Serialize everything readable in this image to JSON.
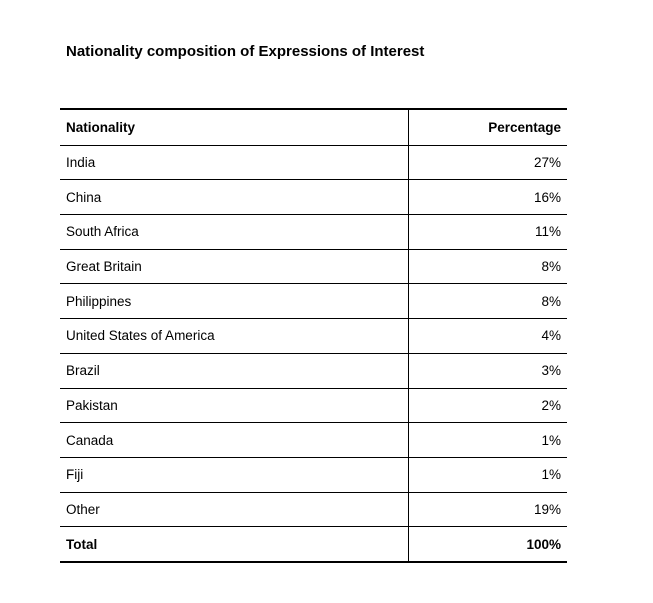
{
  "title": "Nationality composition of Expressions of Interest",
  "table": {
    "header": [
      "Nationality",
      "Percentage"
    ],
    "rows": [
      [
        "India",
        "27%"
      ],
      [
        "China",
        "16%"
      ],
      [
        "South Africa",
        "11%"
      ],
      [
        "Great Britain",
        "8%"
      ],
      [
        "Philippines",
        "8%"
      ],
      [
        "United States of America",
        "4%"
      ],
      [
        "Brazil",
        "3%"
      ],
      [
        "Pakistan",
        "2%"
      ],
      [
        "Canada",
        "1%"
      ],
      [
        "Fiji",
        "1%"
      ],
      [
        "Other",
        "19%"
      ]
    ],
    "total": [
      "Total",
      "100%"
    ]
  }
}
